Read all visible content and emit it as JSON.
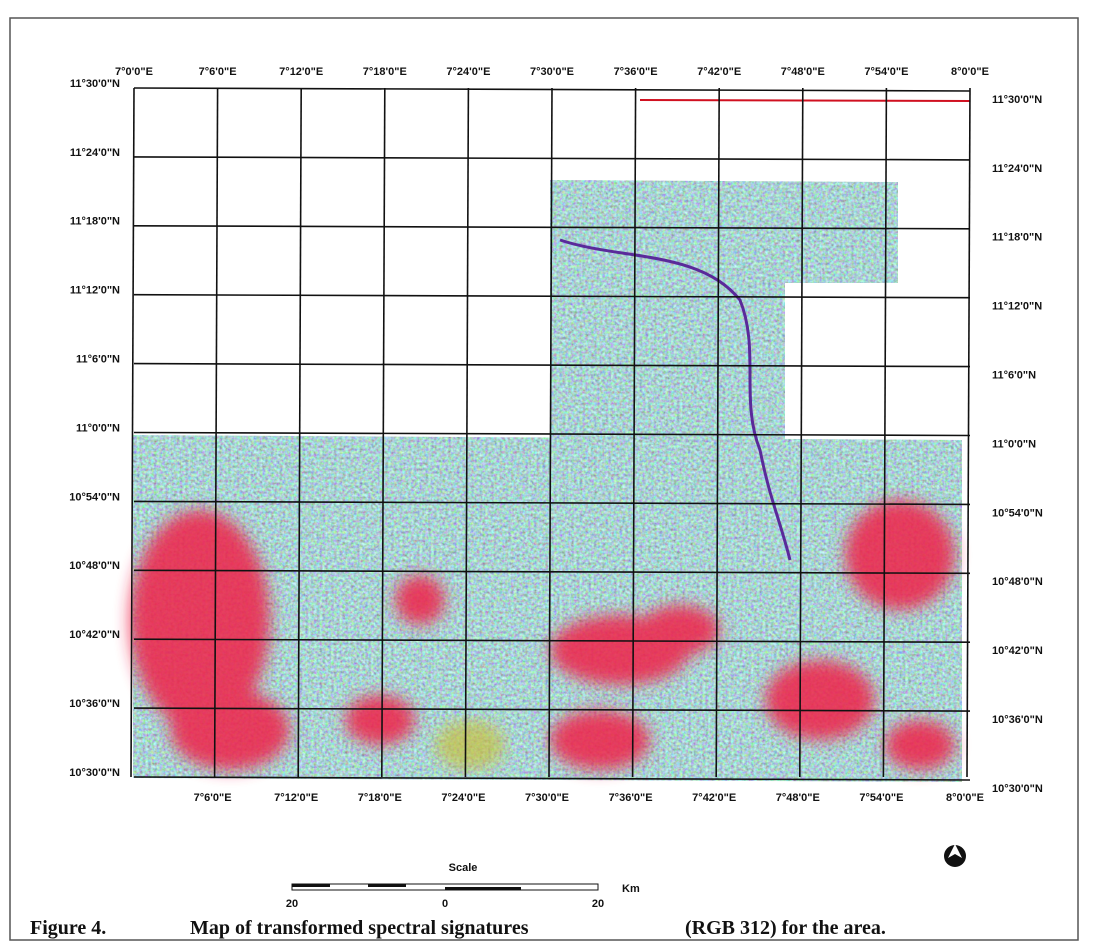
{
  "map": {
    "top_labels": [
      "7°0'0\"E",
      "7°6'0\"E",
      "7°12'0\"E",
      "7°18'0\"E",
      "7°24'0\"E",
      "7°30'0\"E",
      "7°36'0\"E",
      "7°42'0\"E",
      "7°48'0\"E",
      "7°54'0\"E",
      "8°0'0\"E"
    ],
    "bottom_labels": [
      "7°6'0\"E",
      "7°12'0\"E",
      "7°18'0\"E",
      "7°24'0\"E",
      "7°30'0\"E",
      "7°36'0\"E",
      "7°42'0\"E",
      "7°48'0\"E",
      "7°54'0\"E",
      "8°0'0\"E"
    ],
    "left_labels": [
      "11°30'0\"N",
      "11°24'0\"N",
      "11°18'0\"N",
      "11°12'0\"N",
      "11°6'0\"N",
      "11°0'0\"N",
      "10°54'0\"N",
      "10°48'0\"N",
      "10°42'0\"N",
      "10°36'0\"N",
      "10°30'0\"N"
    ],
    "right_labels": [
      "11°30'0\"N",
      "11°24'0\"N",
      "11°18'0\"N",
      "11°12'0\"N",
      "11°6'0\"N",
      "11°0'0\"N",
      "10°54'0\"N",
      "10°48'0\"N",
      "10°42'0\"N",
      "10°36'0\"N",
      "10°30'0\"N"
    ],
    "scale": {
      "title": "Scale",
      "ticks": [
        "20",
        "0",
        "20"
      ],
      "unit": "Km"
    }
  },
  "caption": {
    "label": "Figure 4.",
    "text": "Map of transformed spectral signatures",
    "suffix": "(RGB 312) for the area."
  }
}
